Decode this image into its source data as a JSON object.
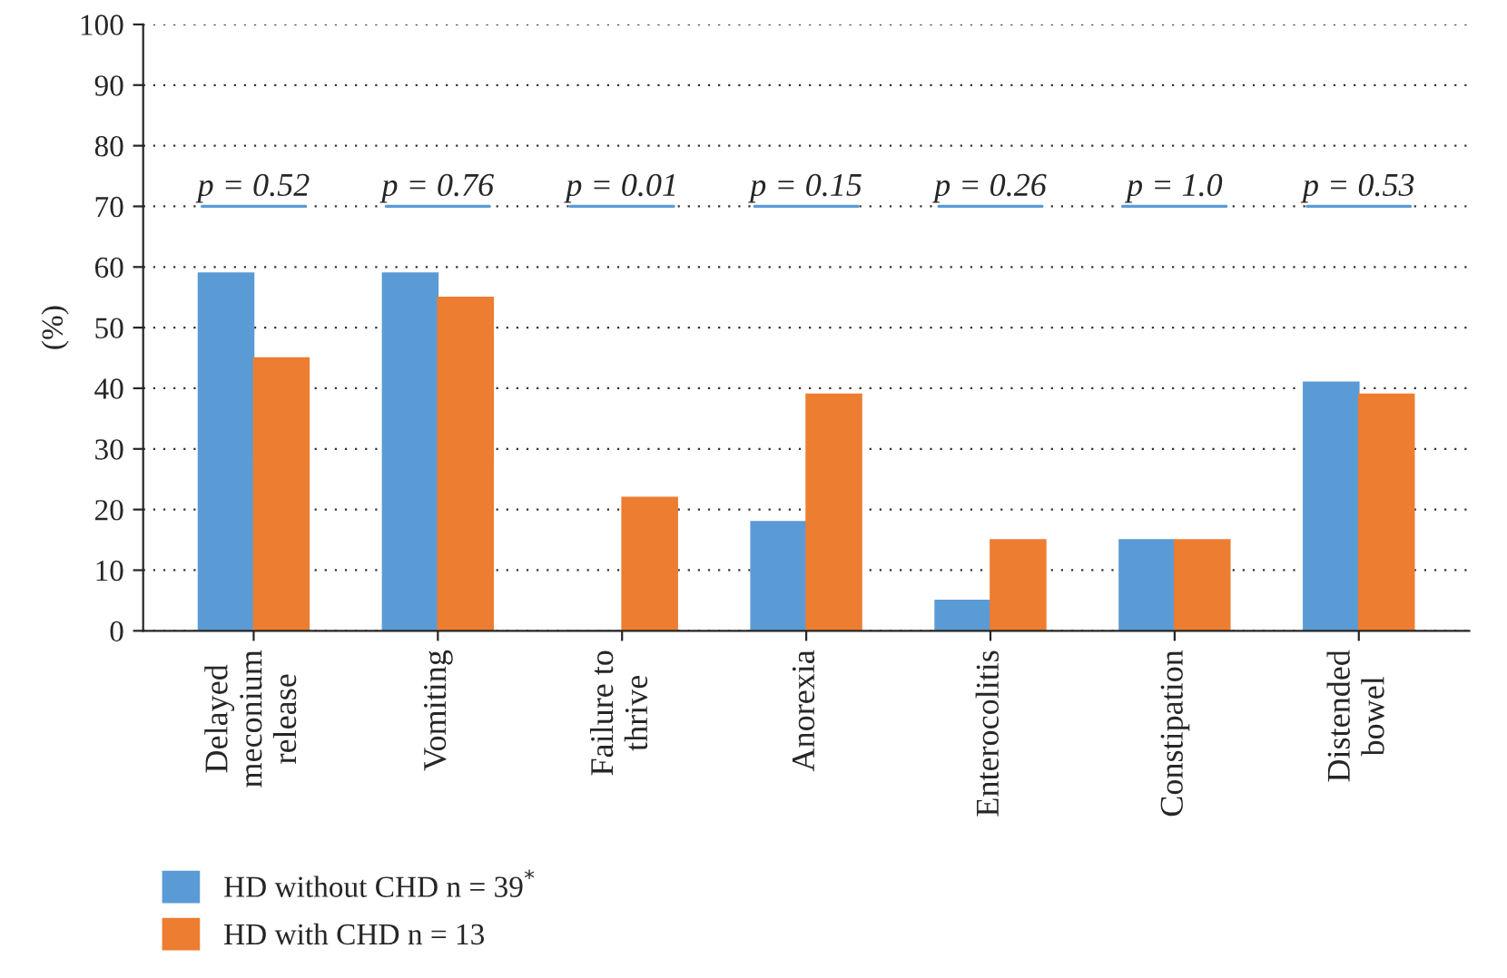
{
  "chart_data": {
    "type": "bar",
    "ylabel": "(%)",
    "categories": [
      "Delayed\nmeconium\nrelease",
      "Vomiting",
      "Failure to\nthrive",
      "Anorexia",
      "Enterocolitis",
      "Constipation",
      "Distended\nbowel"
    ],
    "series": [
      {
        "name": "HD without CHD n = 39$^{*}$",
        "color": "#5b9bd5",
        "values": [
          59,
          59,
          0,
          18,
          5,
          15,
          41
        ]
      },
      {
        "name": "HD with CHD n = 13",
        "color": "#ed7d31",
        "values": [
          45,
          55,
          22,
          39,
          15,
          15,
          39
        ]
      }
    ],
    "annotations": [
      "p = 0.52",
      "p = 0.76",
      "p = 0.01",
      "p = 0.15",
      "p = 0.26",
      "p = 1.0",
      "p = 0.53"
    ],
    "ylim": [
      0,
      100
    ],
    "yticks": [
      0,
      10,
      20,
      30,
      40,
      50,
      60,
      70,
      80,
      90,
      100
    ],
    "grid": "y",
    "legend": "bottom left"
  }
}
